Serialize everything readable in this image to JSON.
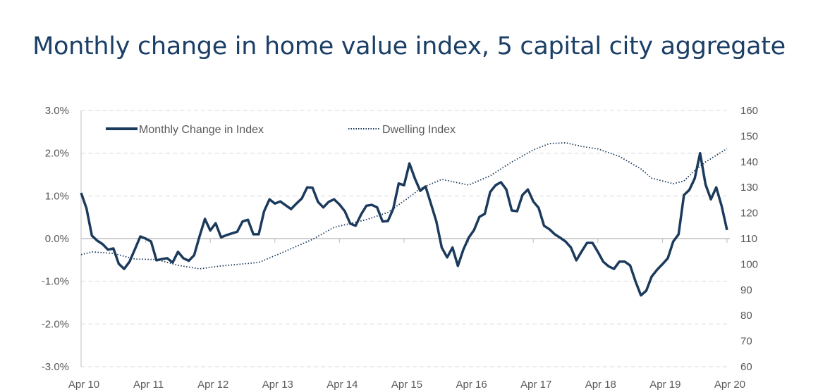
{
  "chart_data": {
    "type": "line",
    "title": "Monthly change in home value index, 5 capital city aggregate",
    "legend_position": "top-left",
    "grid": true,
    "colors": {
      "series": "#1b3a5c",
      "grid": "#d9d9d9",
      "axis": "#bfbfbf",
      "title": "#1b3f66"
    },
    "xlim": [
      "2010-04",
      "2020-04"
    ],
    "x_tick_labels": [
      "Apr 10",
      "Apr 11",
      "Apr 12",
      "Apr 13",
      "Apr 14",
      "Apr 15",
      "Apr 16",
      "Apr 17",
      "Apr 18",
      "Apr 19",
      "Apr 20"
    ],
    "y_left": {
      "ylim": [
        -3.0,
        3.0
      ],
      "tick_labels": [
        "3.0%",
        "2.0%",
        "1.0%",
        "0.0%",
        "-1.0%",
        "-2.0%",
        "-3.0%"
      ],
      "ticks": [
        3,
        2,
        1,
        0,
        -1,
        -2,
        -3
      ]
    },
    "y_right": {
      "ylim": [
        60,
        160
      ],
      "tick_labels": [
        "160",
        "150",
        "140",
        "130",
        "120",
        "110",
        "100",
        "90",
        "80",
        "70",
        "60"
      ],
      "ticks": [
        160,
        150,
        140,
        130,
        120,
        110,
        100,
        90,
        80,
        70,
        60
      ]
    },
    "series": [
      {
        "name": "Monthly Change in Index",
        "axis": "left",
        "style": "solid",
        "x": [
          "2010-04",
          "2010-05",
          "2010-06",
          "2010-07",
          "2010-08",
          "2010-09",
          "2010-10",
          "2010-11",
          "2010-12",
          "2011-01",
          "2011-02",
          "2011-03",
          "2011-04",
          "2011-05",
          "2011-06",
          "2011-07",
          "2011-08",
          "2011-09",
          "2011-10",
          "2011-11",
          "2011-12",
          "2012-01",
          "2012-02",
          "2012-03",
          "2012-04",
          "2012-05",
          "2012-06",
          "2012-07",
          "2012-08",
          "2012-09",
          "2012-10",
          "2012-11",
          "2012-12",
          "2013-01",
          "2013-02",
          "2013-03",
          "2013-04",
          "2013-05",
          "2013-06",
          "2013-07",
          "2013-08",
          "2013-09",
          "2013-10",
          "2013-11",
          "2013-12",
          "2014-01",
          "2014-02",
          "2014-03",
          "2014-04",
          "2014-05",
          "2014-06",
          "2014-07",
          "2014-08",
          "2014-09",
          "2014-10",
          "2014-11",
          "2014-12",
          "2015-01",
          "2015-02",
          "2015-03",
          "2015-04",
          "2015-05",
          "2015-06",
          "2015-07",
          "2015-08",
          "2015-09",
          "2015-10",
          "2015-11",
          "2015-12",
          "2016-01",
          "2016-02",
          "2016-03",
          "2016-04",
          "2016-05",
          "2016-06",
          "2016-07",
          "2016-08",
          "2016-09",
          "2016-10",
          "2016-11",
          "2016-12",
          "2017-01",
          "2017-02",
          "2017-03",
          "2017-04",
          "2017-05",
          "2017-06",
          "2017-07",
          "2017-08",
          "2017-09",
          "2017-10",
          "2017-11",
          "2017-12",
          "2018-01",
          "2018-02",
          "2018-03",
          "2018-04",
          "2018-05",
          "2018-06",
          "2018-07",
          "2018-08",
          "2018-09",
          "2018-10",
          "2018-11",
          "2018-12",
          "2019-01",
          "2019-02",
          "2019-03",
          "2019-04",
          "2019-05",
          "2019-06",
          "2019-07",
          "2019-08",
          "2019-09",
          "2019-10",
          "2019-11",
          "2019-12",
          "2020-01",
          "2020-02",
          "2020-03",
          "2020-04"
        ],
        "values": [
          1.07,
          0.71,
          0.07,
          -0.05,
          -0.13,
          -0.26,
          -0.23,
          -0.59,
          -0.71,
          -0.54,
          -0.25,
          0.05,
          0.0,
          -0.07,
          -0.51,
          -0.48,
          -0.46,
          -0.56,
          -0.31,
          -0.46,
          -0.52,
          -0.39,
          0.05,
          0.46,
          0.19,
          0.36,
          0.03,
          0.08,
          0.12,
          0.16,
          0.4,
          0.44,
          0.1,
          0.1,
          0.64,
          0.92,
          0.82,
          0.87,
          0.78,
          0.69,
          0.82,
          0.94,
          1.2,
          1.19,
          0.86,
          0.73,
          0.86,
          0.92,
          0.8,
          0.64,
          0.35,
          0.3,
          0.56,
          0.77,
          0.79,
          0.73,
          0.4,
          0.41,
          0.7,
          1.29,
          1.25,
          1.76,
          1.41,
          1.12,
          1.22,
          0.81,
          0.4,
          -0.21,
          -0.44,
          -0.21,
          -0.64,
          -0.26,
          0.02,
          0.2,
          0.51,
          0.58,
          1.09,
          1.25,
          1.32,
          1.15,
          0.66,
          0.64,
          1.02,
          1.15,
          0.87,
          0.72,
          0.3,
          0.22,
          0.1,
          0.02,
          -0.07,
          -0.21,
          -0.51,
          -0.3,
          -0.1,
          -0.1,
          -0.31,
          -0.54,
          -0.65,
          -0.71,
          -0.54,
          -0.54,
          -0.63,
          -1.0,
          -1.33,
          -1.22,
          -0.89,
          -0.73,
          -0.6,
          -0.46,
          -0.07,
          0.1,
          1.02,
          1.14,
          1.41,
          2.0,
          1.27,
          0.92,
          1.2,
          0.76,
          0.2
        ]
      },
      {
        "name": "Dwelling Index",
        "axis": "right",
        "style": "dotted",
        "x": [
          "2010-04",
          "2010-06",
          "2010-10",
          "2011-02",
          "2011-06",
          "2011-10",
          "2012-02",
          "2012-06",
          "2013-01",
          "2013-05",
          "2013-11",
          "2014-03",
          "2014-09",
          "2015-01",
          "2015-05",
          "2015-07",
          "2015-11",
          "2016-04",
          "2016-08",
          "2016-12",
          "2017-04",
          "2017-07",
          "2017-10",
          "2018-01",
          "2018-04",
          "2018-08",
          "2018-12",
          "2019-02",
          "2019-06",
          "2019-08",
          "2019-10",
          "2019-12",
          "2020-04"
        ],
        "values": [
          103.7,
          104.8,
          104.2,
          102.0,
          101.8,
          99.6,
          98.2,
          99.3,
          100.7,
          104.2,
          109.7,
          114.4,
          117.4,
          120.2,
          126.2,
          129.5,
          133.1,
          130.9,
          134.5,
          139.9,
          144.6,
          147.1,
          147.4,
          146.0,
          145.0,
          142.1,
          137.2,
          133.6,
          131.4,
          132.5,
          136.6,
          139.9,
          145.1
        ]
      }
    ]
  }
}
